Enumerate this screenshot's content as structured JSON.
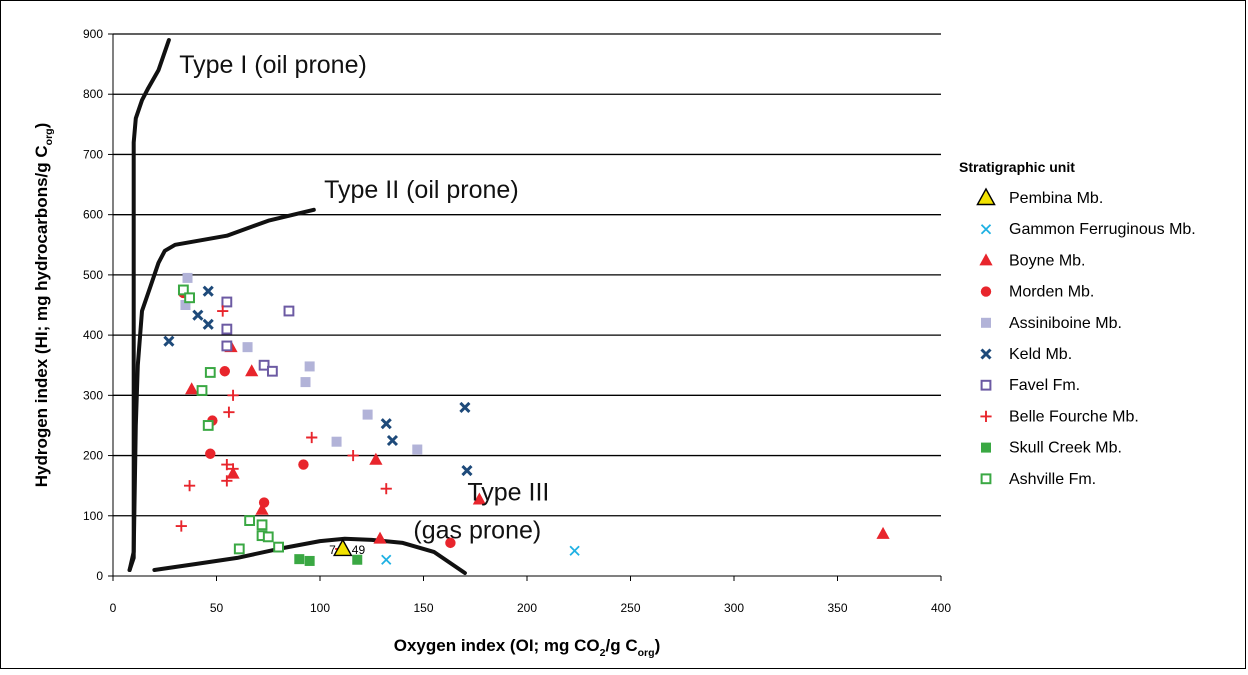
{
  "chart_data": {
    "type": "scatter",
    "xlabel": "Oxygen index (OI; mg CO₂/g C_org)",
    "ylabel": "Hydrogen index (HI; mg hydrocarbons/g C_org)",
    "xlim": [
      0,
      400
    ],
    "ylim": [
      0,
      900
    ],
    "xticks": [
      0,
      50,
      100,
      150,
      200,
      250,
      300,
      350,
      400
    ],
    "yticks": [
      0,
      100,
      200,
      300,
      400,
      500,
      600,
      700,
      800,
      900
    ],
    "grid": "horizontal",
    "legend_title": "Stratigraphic unit",
    "legend_position": "right",
    "curves": [
      {
        "label": "Type I (oil prone)",
        "points": [
          [
            8,
            10
          ],
          [
            10,
            30
          ],
          [
            10,
            150
          ],
          [
            10,
            500
          ],
          [
            10,
            720
          ],
          [
            11,
            760
          ],
          [
            14,
            790
          ],
          [
            17,
            810
          ],
          [
            22,
            840
          ],
          [
            27,
            890
          ]
        ]
      },
      {
        "label": "Type II (oil prone)",
        "points": [
          [
            8,
            10
          ],
          [
            10,
            40
          ],
          [
            11,
            250
          ],
          [
            12,
            350
          ],
          [
            14,
            440
          ],
          [
            18,
            480
          ],
          [
            22,
            520
          ],
          [
            25,
            540
          ],
          [
            30,
            550
          ],
          [
            55,
            565
          ],
          [
            75,
            590
          ],
          [
            97,
            608
          ]
        ]
      },
      {
        "label": "Type III (gas prone)",
        "points": [
          [
            20,
            10
          ],
          [
            40,
            20
          ],
          [
            60,
            30
          ],
          [
            80,
            45
          ],
          [
            100,
            58
          ],
          [
            112,
            62
          ],
          [
            125,
            60
          ],
          [
            140,
            55
          ],
          [
            155,
            40
          ],
          [
            170,
            5
          ]
        ]
      }
    ],
    "curve_labels": [
      {
        "text": "Type I (oil prone)"
      },
      {
        "text": "Type II (oil prone)"
      },
      {
        "text": "Type III"
      },
      {
        "text": "(gas prone)"
      }
    ],
    "annotations": [
      {
        "text": "7"
      },
      {
        "text": "49"
      }
    ],
    "series": [
      {
        "name": "Pembina Mb.",
        "marker": "triangle-open",
        "color": "#f2e200",
        "edge": "#000000",
        "points": [
          [
            111,
            45
          ]
        ]
      },
      {
        "name": "Gammon Ferruginous Mb.",
        "marker": "x",
        "color": "#1fb1e3",
        "points": [
          [
            132,
            27
          ],
          [
            223,
            42
          ]
        ]
      },
      {
        "name": "Boyne Mb.",
        "marker": "triangle",
        "color": "#e8252c",
        "points": [
          [
            57,
            380
          ],
          [
            38,
            310
          ],
          [
            67,
            340
          ],
          [
            58,
            170
          ],
          [
            72,
            110
          ],
          [
            127,
            193
          ],
          [
            129,
            62
          ],
          [
            177,
            127
          ],
          [
            372,
            70
          ]
        ]
      },
      {
        "name": "Morden Mb.",
        "marker": "circle",
        "color": "#e8252c",
        "points": [
          [
            34,
            470
          ],
          [
            54,
            340
          ],
          [
            48,
            258
          ],
          [
            47,
            203
          ],
          [
            73,
            122
          ],
          [
            92,
            185
          ],
          [
            163,
            55
          ]
        ]
      },
      {
        "name": "Assiniboine Mb.",
        "marker": "square",
        "color": "#b2b3d8",
        "points": [
          [
            36,
            495
          ],
          [
            35,
            450
          ],
          [
            65,
            380
          ],
          [
            95,
            348
          ],
          [
            93,
            322
          ],
          [
            108,
            223
          ],
          [
            123,
            268
          ],
          [
            147,
            210
          ]
        ]
      },
      {
        "name": "Keld Mb.",
        "marker": "cross",
        "color": "#1e4a7a",
        "points": [
          [
            46,
            473
          ],
          [
            41,
            433
          ],
          [
            46,
            418
          ],
          [
            27,
            390
          ],
          [
            132,
            253
          ],
          [
            135,
            225
          ],
          [
            170,
            280
          ],
          [
            171,
            175
          ]
        ]
      },
      {
        "name": "Favel Fm.",
        "marker": "square-open",
        "color": "#6c5aa3",
        "points": [
          [
            55,
            455
          ],
          [
            55,
            410
          ],
          [
            55,
            382
          ],
          [
            85,
            440
          ],
          [
            73,
            350
          ],
          [
            77,
            340
          ]
        ]
      },
      {
        "name": "Belle Fourche Mb.",
        "marker": "plus",
        "color": "#e8252c",
        "points": [
          [
            53,
            440
          ],
          [
            58,
            300
          ],
          [
            56,
            272
          ],
          [
            96,
            230
          ],
          [
            116,
            200
          ],
          [
            55,
            185
          ],
          [
            58,
            178
          ],
          [
            37,
            150
          ],
          [
            55,
            158
          ],
          [
            132,
            145
          ],
          [
            33,
            83
          ],
          [
            110,
            45
          ]
        ]
      },
      {
        "name": "Skull Creek Mb.",
        "marker": "square",
        "color": "#3aa843",
        "points": [
          [
            90,
            28
          ],
          [
            95,
            25
          ],
          [
            118,
            27
          ]
        ]
      },
      {
        "name": "Ashville Fm.",
        "marker": "square-open",
        "color": "#3aa843",
        "points": [
          [
            34,
            475
          ],
          [
            37,
            462
          ],
          [
            43,
            308
          ],
          [
            47,
            338
          ],
          [
            46,
            250
          ],
          [
            66,
            92
          ],
          [
            72,
            85
          ],
          [
            72,
            67
          ],
          [
            75,
            65
          ],
          [
            80,
            48
          ],
          [
            61,
            45
          ]
        ]
      }
    ]
  }
}
